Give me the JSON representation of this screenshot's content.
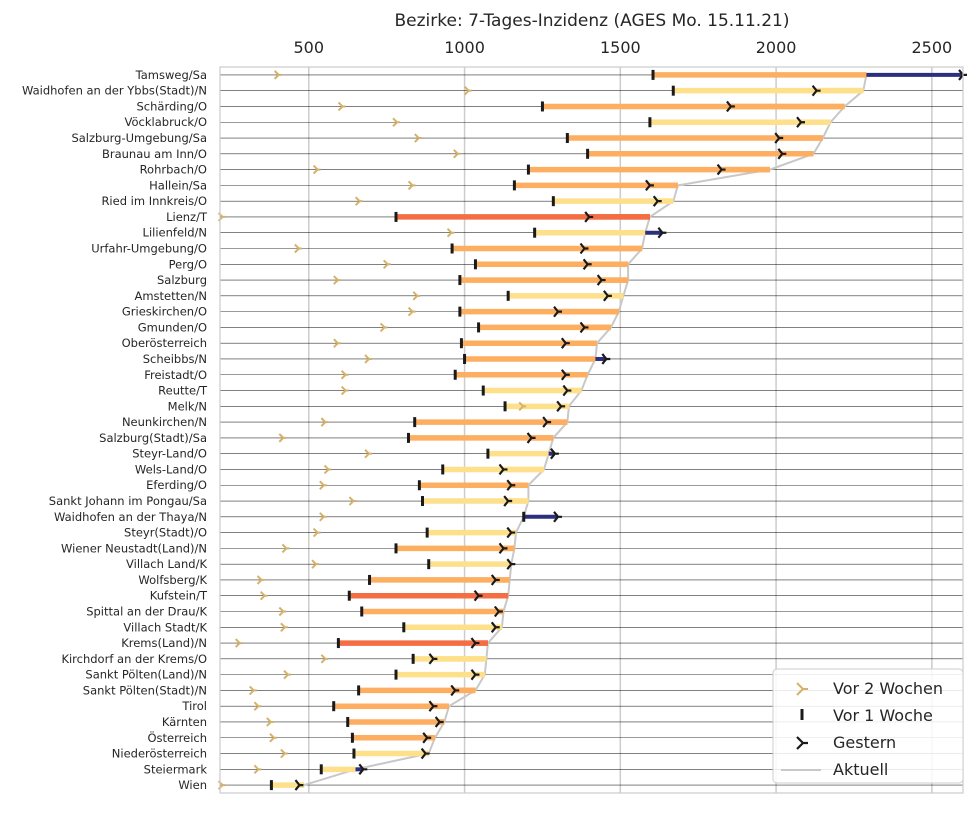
{
  "chart_data": {
    "type": "bar",
    "title": "Bezirke: 7-Tages-Inzidenz (AGES Mo. 15.11.21)",
    "xlim": [
      215,
      2600
    ],
    "xticks": [
      500,
      1000,
      1500,
      2000,
      2500
    ],
    "grid": true,
    "legend_position": "bottom-right",
    "legend": {
      "vor2": "Vor 2 Wochen",
      "vor1": "Vor 1 Woche",
      "gestern": "Gestern",
      "aktuell": "Aktuell"
    },
    "colors": {
      "aktuell_line": "#c8c8c8",
      "vor2_marker": "#d4b26a",
      "marker_dark": "#1a1a1a",
      "increase_scale": [
        "#fee08b",
        "#fdae61",
        "#f46d43",
        "#d73027",
        "#a50026"
      ],
      "decrease_bar": "#2b2f7e"
    },
    "rows": [
      {
        "name": "Tamsweg/Sa",
        "vor2": 400,
        "vor1": 1605,
        "gestern": 2600,
        "aktuell": 2290
      },
      {
        "name": "Waidhofen an der Ybbs(Stadt)/N",
        "vor2": 1010,
        "vor1": 1670,
        "gestern": 2130,
        "aktuell": 2280
      },
      {
        "name": "Schärding/O",
        "vor2": 605,
        "vor1": 1250,
        "gestern": 1855,
        "aktuell": 2220
      },
      {
        "name": "Vöcklabruck/O",
        "vor2": 780,
        "vor1": 1595,
        "gestern": 2080,
        "aktuell": 2175
      },
      {
        "name": "Salzburg-Umgebung/Sa",
        "vor2": 850,
        "vor1": 1330,
        "gestern": 2010,
        "aktuell": 2150
      },
      {
        "name": "Braunau am Inn/O",
        "vor2": 975,
        "vor1": 1395,
        "gestern": 2020,
        "aktuell": 2120
      },
      {
        "name": "Rohrbach/O",
        "vor2": 525,
        "vor1": 1205,
        "gestern": 1825,
        "aktuell": 1980
      },
      {
        "name": "Hallein/Sa",
        "vor2": 830,
        "vor1": 1160,
        "gestern": 1595,
        "aktuell": 1685
      },
      {
        "name": "Ried im Innkreis/O",
        "vor2": 660,
        "vor1": 1285,
        "gestern": 1620,
        "aktuell": 1670
      },
      {
        "name": "Lienz/T",
        "vor2": 220,
        "vor1": 780,
        "gestern": 1400,
        "aktuell": 1595
      },
      {
        "name": "Lilienfeld/N",
        "vor2": 955,
        "vor1": 1225,
        "gestern": 1635,
        "aktuell": 1580
      },
      {
        "name": "Urfahr-Umgebung/O",
        "vor2": 465,
        "vor1": 960,
        "gestern": 1385,
        "aktuell": 1570
      },
      {
        "name": "Perg/O",
        "vor2": 750,
        "vor1": 1035,
        "gestern": 1395,
        "aktuell": 1525
      },
      {
        "name": "Salzburg",
        "vor2": 590,
        "vor1": 985,
        "gestern": 1440,
        "aktuell": 1525
      },
      {
        "name": "Amstetten/N",
        "vor2": 845,
        "vor1": 1140,
        "gestern": 1460,
        "aktuell": 1510
      },
      {
        "name": "Grieskirchen/O",
        "vor2": 830,
        "vor1": 985,
        "gestern": 1300,
        "aktuell": 1495
      },
      {
        "name": "Gmunden/O",
        "vor2": 740,
        "vor1": 1045,
        "gestern": 1385,
        "aktuell": 1470
      },
      {
        "name": "Oberösterreich",
        "vor2": 590,
        "vor1": 990,
        "gestern": 1325,
        "aktuell": 1425
      },
      {
        "name": "Scheibbs/N",
        "vor2": 690,
        "vor1": 1000,
        "gestern": 1455,
        "aktuell": 1420
      },
      {
        "name": "Freistadt/O",
        "vor2": 615,
        "vor1": 970,
        "gestern": 1325,
        "aktuell": 1395
      },
      {
        "name": "Reutte/T",
        "vor2": 615,
        "vor1": 1060,
        "gestern": 1330,
        "aktuell": 1375
      },
      {
        "name": "Melk/N",
        "vor2": 1185,
        "vor1": 1130,
        "gestern": 1310,
        "aktuell": 1335
      },
      {
        "name": "Neunkirchen/N",
        "vor2": 550,
        "vor1": 840,
        "gestern": 1265,
        "aktuell": 1330
      },
      {
        "name": "Salzburg(Stadt)/Sa",
        "vor2": 415,
        "vor1": 820,
        "gestern": 1215,
        "aktuell": 1285
      },
      {
        "name": "Steyr-Land/O",
        "vor2": 690,
        "vor1": 1075,
        "gestern": 1290,
        "aktuell": 1270
      },
      {
        "name": "Wels-Land/O",
        "vor2": 560,
        "vor1": 930,
        "gestern": 1125,
        "aktuell": 1255
      },
      {
        "name": "Eferding/O",
        "vor2": 545,
        "vor1": 855,
        "gestern": 1150,
        "aktuell": 1205
      },
      {
        "name": "Sankt Johann im Pongau/Sa",
        "vor2": 640,
        "vor1": 865,
        "gestern": 1140,
        "aktuell": 1205
      },
      {
        "name": "Waidhofen an der Thaya/N",
        "vor2": 545,
        "vor1": 1190,
        "gestern": 1300,
        "aktuell": 1190
      },
      {
        "name": "Steyr(Stadt)/O",
        "vor2": 525,
        "vor1": 880,
        "gestern": 1150,
        "aktuell": 1165
      },
      {
        "name": "Wiener Neustadt(Land)/N",
        "vor2": 425,
        "vor1": 780,
        "gestern": 1125,
        "aktuell": 1160
      },
      {
        "name": "Villach Land/K",
        "vor2": 520,
        "vor1": 885,
        "gestern": 1150,
        "aktuell": 1150
      },
      {
        "name": "Wolfsberg/K",
        "vor2": 345,
        "vor1": 695,
        "gestern": 1100,
        "aktuell": 1145
      },
      {
        "name": "Kufstein/T",
        "vor2": 355,
        "vor1": 630,
        "gestern": 1045,
        "aktuell": 1140
      },
      {
        "name": "Spittal an der Drau/K",
        "vor2": 415,
        "vor1": 670,
        "gestern": 1110,
        "aktuell": 1125
      },
      {
        "name": "Villach Stadt/K",
        "vor2": 420,
        "vor1": 805,
        "gestern": 1100,
        "aktuell": 1120
      },
      {
        "name": "Krems(Land)/N",
        "vor2": 275,
        "vor1": 595,
        "gestern": 1035,
        "aktuell": 1075
      },
      {
        "name": "Kirchdorf an der Krems/O",
        "vor2": 550,
        "vor1": 835,
        "gestern": 900,
        "aktuell": 1070
      },
      {
        "name": "Sankt Pölten(Land)/N",
        "vor2": 430,
        "vor1": 780,
        "gestern": 1035,
        "aktuell": 1065
      },
      {
        "name": "Sankt Pölten(Stadt)/N",
        "vor2": 320,
        "vor1": 660,
        "gestern": 970,
        "aktuell": 1035
      },
      {
        "name": "Tirol",
        "vor2": 335,
        "vor1": 580,
        "gestern": 900,
        "aktuell": 950
      },
      {
        "name": "Kärnten",
        "vor2": 375,
        "vor1": 625,
        "gestern": 920,
        "aktuell": 935
      },
      {
        "name": "Österreich",
        "vor2": 385,
        "vor1": 640,
        "gestern": 880,
        "aktuell": 905
      },
      {
        "name": "Niederösterreich",
        "vor2": 420,
        "vor1": 645,
        "gestern": 875,
        "aktuell": 885
      },
      {
        "name": "Steiermark",
        "vor2": 335,
        "vor1": 540,
        "gestern": 675,
        "aktuell": 650
      },
      {
        "name": "Wien",
        "vor2": 220,
        "vor1": 380,
        "gestern": 470,
        "aktuell": 485
      }
    ]
  }
}
